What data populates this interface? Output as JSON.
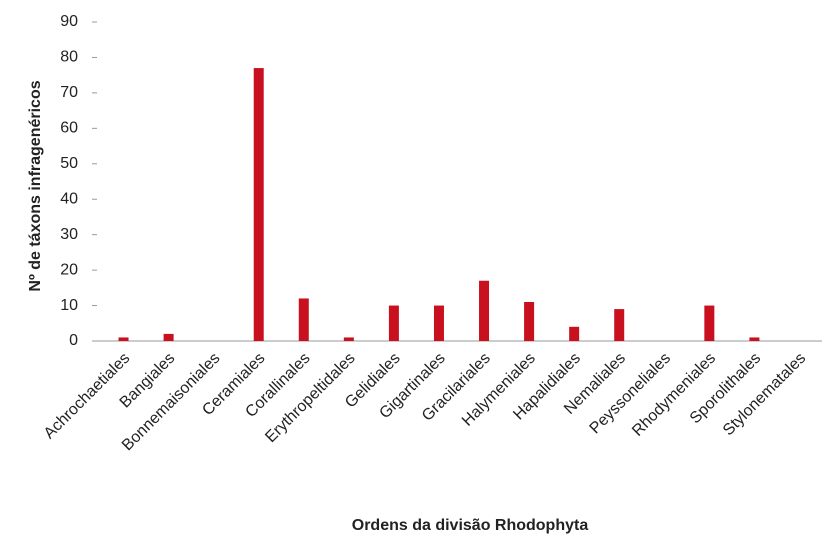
{
  "chart_data": {
    "type": "bar",
    "xlabel": "Ordens da divisão Rhodophyta",
    "ylabel": "Nº de táxons infragenéricos",
    "categories": [
      "Achrochaetiales",
      "Bangiales",
      "Bonnemaisoniales",
      "Ceramiales",
      "Corallinales",
      "Erythropeltidales",
      "Gelidiales",
      "Gigartinales",
      "Gracilariales",
      "Halymeniales",
      "Hapalidiales",
      "Nemaliales",
      "Peyssoneliales",
      "Rhodymeniales",
      "Sporolithales",
      "Stylonematales"
    ],
    "values": [
      1,
      2,
      0,
      77,
      12,
      1,
      10,
      10,
      17,
      11,
      4,
      9,
      0,
      10,
      1,
      0
    ],
    "color": "#c8101e",
    "ylim": [
      0,
      90
    ],
    "yticks": [
      0,
      10,
      20,
      30,
      40,
      50,
      60,
      70,
      80,
      90
    ],
    "grid": false
  }
}
